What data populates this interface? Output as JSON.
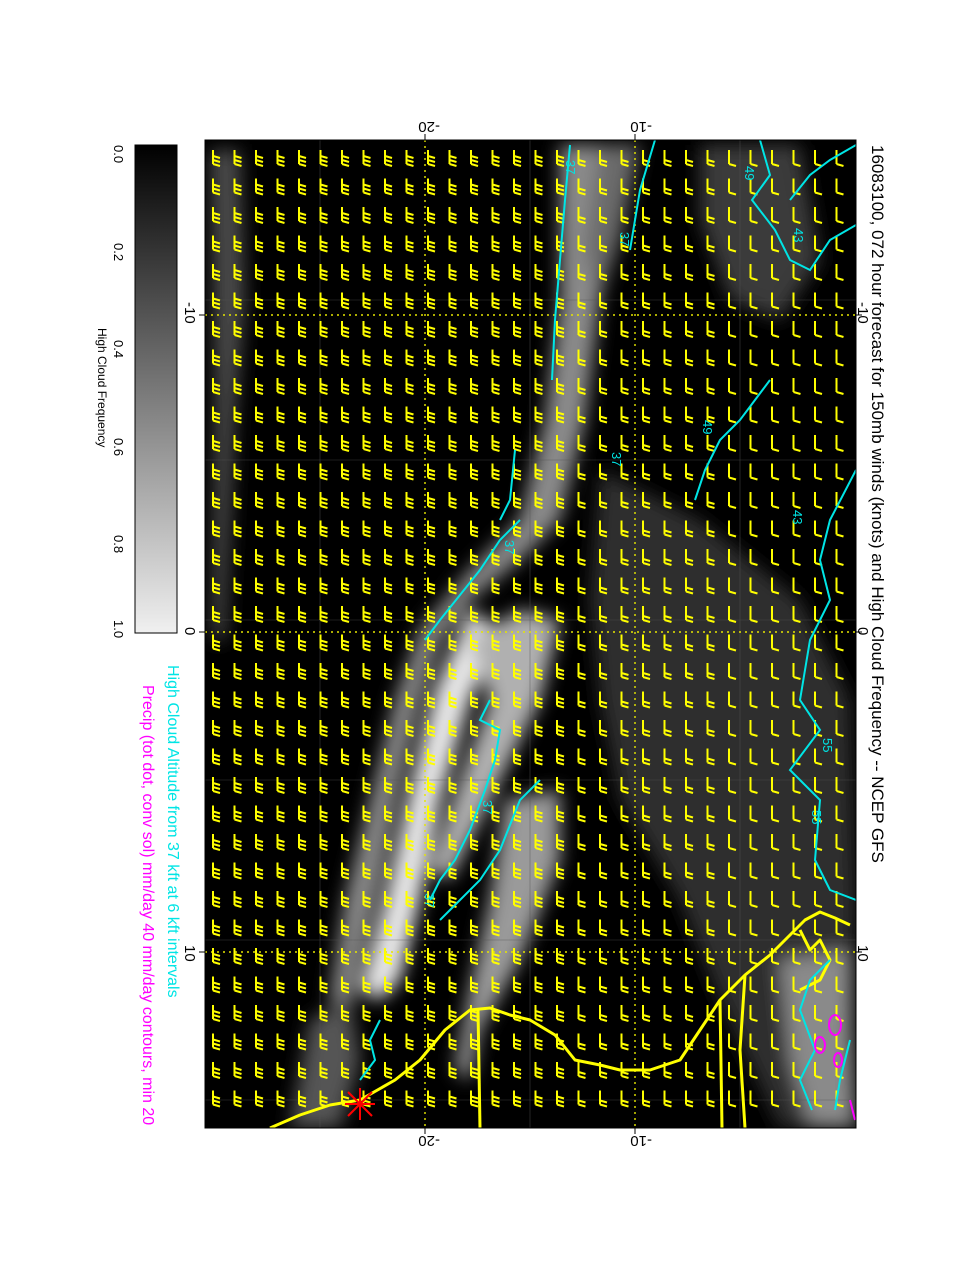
{
  "title": "16083100, 072 hour forecast for 150mb winds (knots) and High Cloud Frequency -- NCEP GFS",
  "subtitle_altitude": "High Cloud Altitude from 37 kft at 6 kft intervals",
  "subtitle_precip": "Precip (tot dot, conv sol) mm/day 40 mm/day contours, min 20",
  "colorbar": {
    "label": "High Cloud Frequency",
    "ticks": [
      "0.0",
      "0.2",
      "0.4",
      "0.6",
      "0.8",
      "1.0"
    ]
  },
  "axes": {
    "top_ticks": [
      "-20",
      "-10"
    ],
    "bottom_ticks": [
      "-20",
      "-10"
    ],
    "left_ticks": [
      "-10",
      "0",
      "10"
    ],
    "right_ticks": [
      "-10",
      "0",
      "10"
    ]
  },
  "contour_labels": [
    "37",
    "43",
    "49",
    "55",
    "37",
    "37",
    "37",
    "37",
    "37",
    "43",
    "49",
    "55"
  ],
  "colors": {
    "background": "#000000",
    "wind_barbs": "#ffff00",
    "coastline": "#ffff00",
    "altitude_contours": "#00e5e5",
    "precip_contours": "#ff00ff",
    "marker": "#ff0000"
  }
}
